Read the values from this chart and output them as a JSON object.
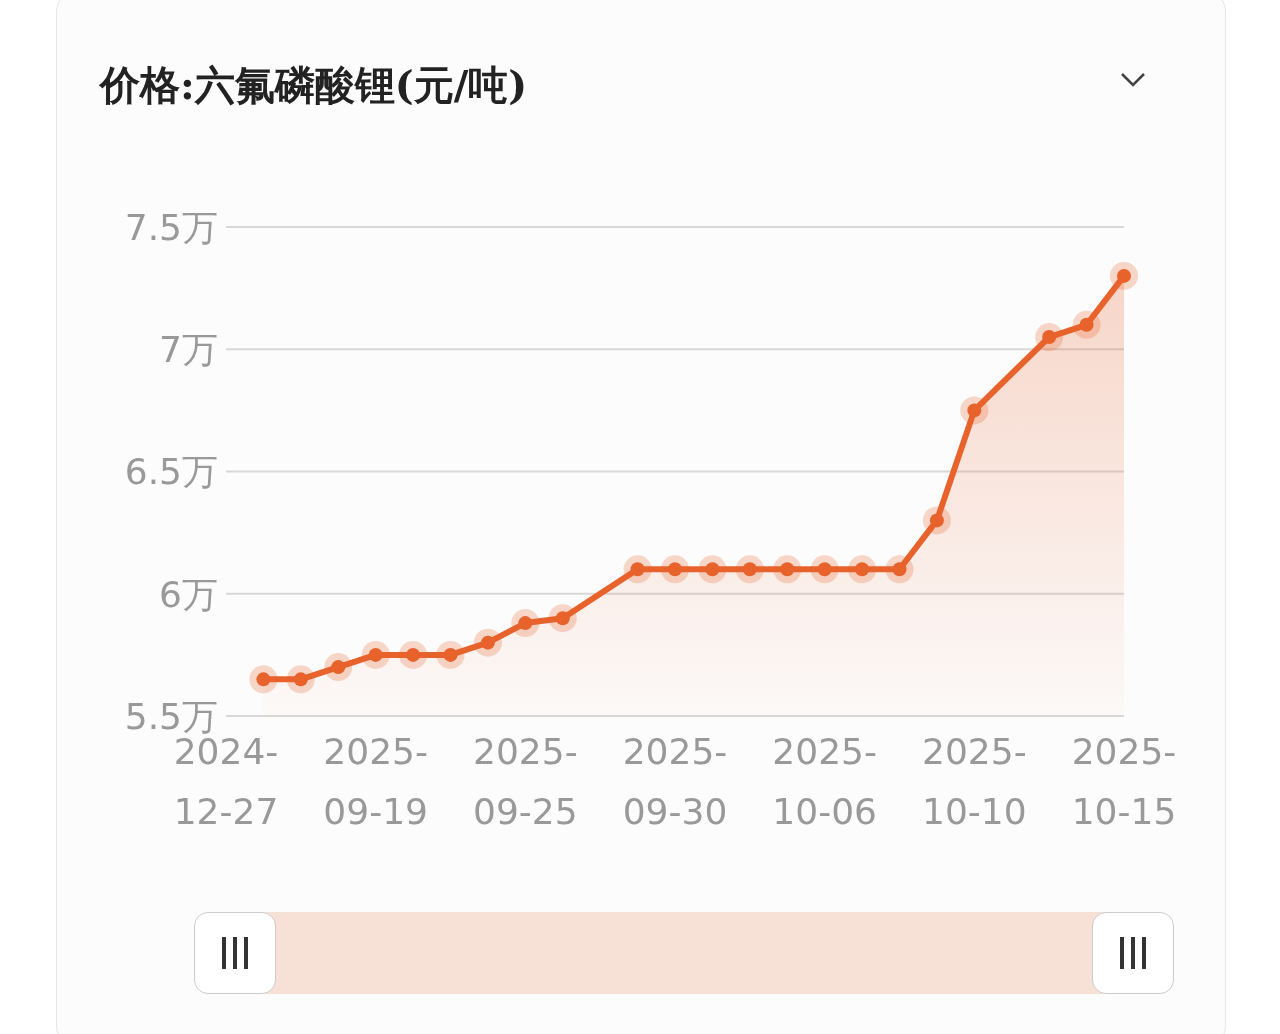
{
  "chart_data": {
    "type": "area",
    "title": "价格:六氟磷酸锂(元/吨)",
    "categories": [
      "2024-12-27",
      null,
      null,
      null,
      "2025-09-19",
      null,
      null,
      null,
      "2025-09-25",
      null,
      null,
      null,
      "2025-09-30",
      null,
      null,
      null,
      "2025-10-06",
      null,
      null,
      null,
      "2025-10-10",
      null,
      null,
      null,
      "2025-10-15"
    ],
    "series": [
      {
        "color": "#e8622c",
        "values": [
          null,
          5.65,
          5.65,
          5.7,
          5.75,
          5.75,
          5.75,
          5.8,
          5.88,
          5.9,
          null,
          6.1,
          6.1,
          6.1,
          6.1,
          6.1,
          6.1,
          6.1,
          6.1,
          6.3,
          6.75,
          null,
          7.05,
          7.1,
          7.3
        ]
      }
    ],
    "ylim": [
      5.5,
      7.5
    ],
    "yticks": [
      {
        "value": 5.5,
        "label": "5.5万"
      },
      {
        "value": 6,
        "label": "6万"
      },
      {
        "value": 6.5,
        "label": "6.5万"
      },
      {
        "value": 7,
        "label": "7万"
      },
      {
        "value": 7.5,
        "label": "7.5万"
      }
    ],
    "grid": "y",
    "marker": "circle",
    "line_style": "solid"
  }
}
